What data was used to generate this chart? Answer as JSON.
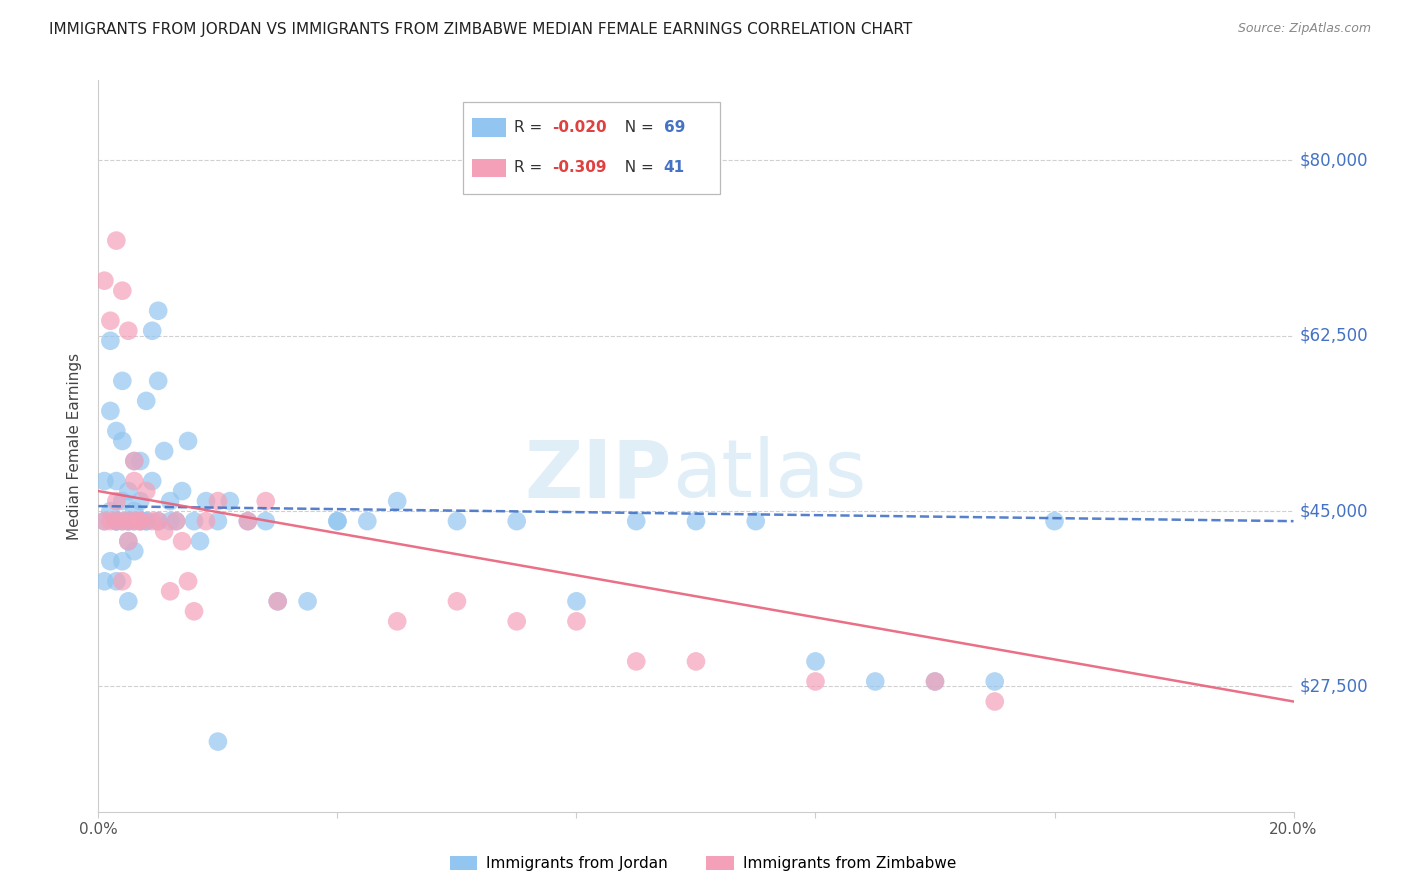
{
  "title": "IMMIGRANTS FROM JORDAN VS IMMIGRANTS FROM ZIMBABWE MEDIAN FEMALE EARNINGS CORRELATION CHART",
  "source": "Source: ZipAtlas.com",
  "ylabel": "Median Female Earnings",
  "xlim": [
    0.0,
    0.2
  ],
  "ylim": [
    15000,
    88000
  ],
  "yticks": [
    27500,
    45000,
    62500,
    80000
  ],
  "ytick_labels": [
    "$27,500",
    "$45,000",
    "$62,500",
    "$80,000"
  ],
  "xticks": [
    0.0,
    0.04,
    0.08,
    0.12,
    0.16,
    0.2
  ],
  "xtick_labels": [
    "0.0%",
    "",
    "",
    "",
    "",
    "20.0%"
  ],
  "jordan_R": -0.02,
  "jordan_N": 69,
  "zimbabwe_R": -0.309,
  "zimbabwe_N": 41,
  "jordan_color": "#92C5F0",
  "zimbabwe_color": "#F4A0B8",
  "jordan_line_color": "#4472C4",
  "zimbabwe_line_color": "#E8607A",
  "background_color": "#FFFFFF",
  "grid_color": "#D0D0D0",
  "jordan_line_x0": 0.0,
  "jordan_line_y0": 45500,
  "jordan_line_x1": 0.2,
  "jordan_line_y1": 44000,
  "zimbabwe_line_x0": 0.0,
  "zimbabwe_line_y0": 47000,
  "zimbabwe_line_x1": 0.2,
  "zimbabwe_line_y1": 26000,
  "jordan_scatter_x": [
    0.001,
    0.001,
    0.001,
    0.002,
    0.002,
    0.002,
    0.002,
    0.003,
    0.003,
    0.003,
    0.003,
    0.003,
    0.004,
    0.004,
    0.004,
    0.004,
    0.004,
    0.005,
    0.005,
    0.005,
    0.005,
    0.006,
    0.006,
    0.006,
    0.007,
    0.007,
    0.007,
    0.008,
    0.008,
    0.009,
    0.009,
    0.01,
    0.01,
    0.01,
    0.011,
    0.012,
    0.012,
    0.013,
    0.014,
    0.015,
    0.016,
    0.017,
    0.018,
    0.02,
    0.022,
    0.025,
    0.028,
    0.03,
    0.035,
    0.04,
    0.045,
    0.05,
    0.06,
    0.07,
    0.08,
    0.09,
    0.1,
    0.11,
    0.12,
    0.13,
    0.14,
    0.15,
    0.16,
    0.04,
    0.02,
    0.006,
    0.008,
    0.003,
    0.005
  ],
  "jordan_scatter_y": [
    44000,
    48000,
    38000,
    45000,
    55000,
    62000,
    40000,
    44000,
    48000,
    53000,
    44000,
    38000,
    46000,
    52000,
    44000,
    40000,
    58000,
    44000,
    47000,
    42000,
    36000,
    45000,
    50000,
    41000,
    46000,
    50000,
    44000,
    56000,
    44000,
    48000,
    63000,
    65000,
    58000,
    44000,
    51000,
    46000,
    44000,
    44000,
    47000,
    52000,
    44000,
    42000,
    46000,
    44000,
    46000,
    44000,
    44000,
    36000,
    36000,
    44000,
    44000,
    46000,
    44000,
    44000,
    36000,
    44000,
    44000,
    44000,
    30000,
    28000,
    28000,
    28000,
    44000,
    44000,
    22000,
    44000,
    44000,
    44000,
    44000
  ],
  "zimbabwe_scatter_x": [
    0.001,
    0.001,
    0.002,
    0.002,
    0.003,
    0.003,
    0.004,
    0.004,
    0.005,
    0.005,
    0.006,
    0.006,
    0.007,
    0.007,
    0.008,
    0.009,
    0.01,
    0.011,
    0.012,
    0.013,
    0.014,
    0.015,
    0.016,
    0.018,
    0.02,
    0.025,
    0.028,
    0.03,
    0.05,
    0.06,
    0.07,
    0.08,
    0.09,
    0.1,
    0.12,
    0.14,
    0.15,
    0.003,
    0.004,
    0.005,
    0.006
  ],
  "zimbabwe_scatter_y": [
    44000,
    68000,
    64000,
    44000,
    72000,
    44000,
    44000,
    67000,
    44000,
    63000,
    44000,
    50000,
    44000,
    44000,
    47000,
    44000,
    44000,
    43000,
    37000,
    44000,
    42000,
    38000,
    35000,
    44000,
    46000,
    44000,
    46000,
    36000,
    34000,
    36000,
    34000,
    34000,
    30000,
    30000,
    28000,
    28000,
    26000,
    46000,
    38000,
    42000,
    48000
  ]
}
